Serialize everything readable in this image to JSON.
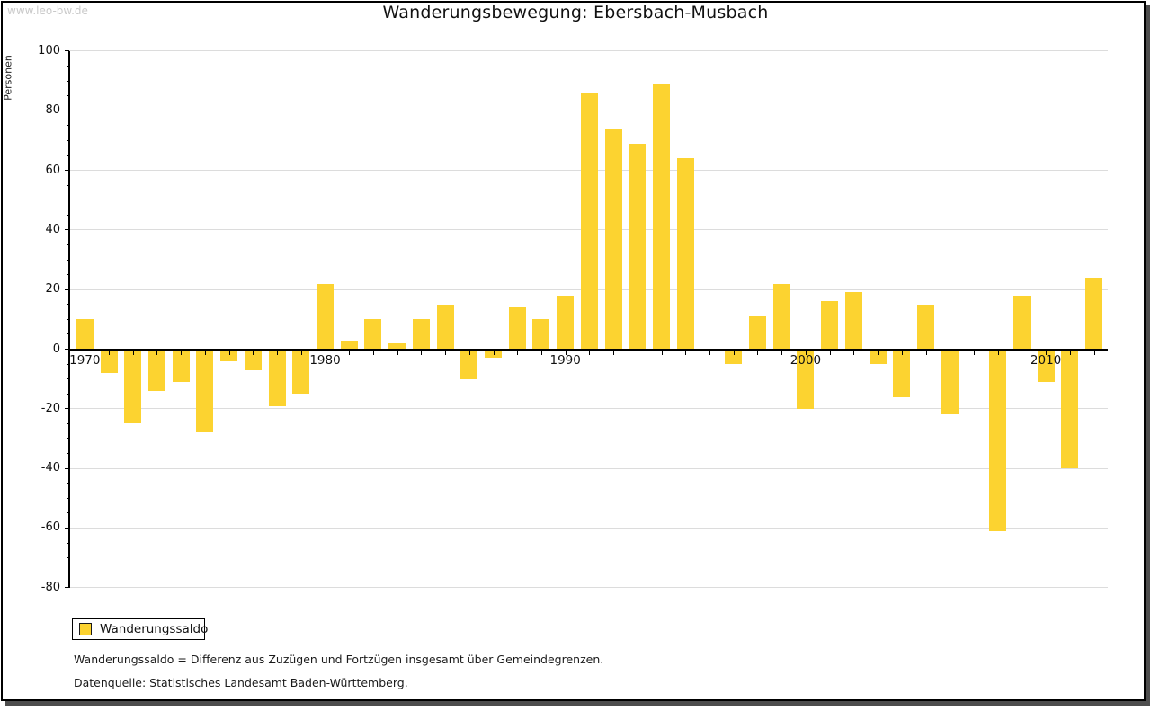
{
  "watermark": "www.leo-bw.de",
  "title": "Wanderungsbewegung: Ebersbach-Musbach",
  "legend": {
    "label": "Wanderungssaldo"
  },
  "footnotes": {
    "definition": "Wanderungssaldo = Differenz aus Zuzügen und Fortzügen insgesamt über Gemeindegrenzen.",
    "source": "Datenquelle: Statistisches Landesamt Baden-Württemberg."
  },
  "colors": {
    "bar": "#fcd330",
    "gridline": "#dcdcdc",
    "axis": "#000000",
    "frame_shadow": "#4d4d4d",
    "watermark": "#c9c9c9"
  },
  "chart_data": {
    "type": "bar",
    "title": "Wanderungsbewegung: Ebersbach-Musbach",
    "xlabel": "",
    "ylabel": "Personen",
    "series_name": "Wanderungssaldo",
    "x": [
      1970,
      1971,
      1972,
      1973,
      1974,
      1975,
      1976,
      1977,
      1978,
      1979,
      1980,
      1981,
      1982,
      1983,
      1984,
      1985,
      1986,
      1987,
      1988,
      1989,
      1990,
      1991,
      1992,
      1993,
      1994,
      1995,
      1996,
      1997,
      1998,
      1999,
      2000,
      2001,
      2002,
      2003,
      2004,
      2005,
      2006,
      2007,
      2008,
      2009,
      2010,
      2011,
      2012
    ],
    "values": [
      10,
      -8,
      -25,
      -14,
      -11,
      -28,
      -4,
      -7,
      -19,
      -15,
      22,
      3,
      10,
      2,
      10,
      15,
      -10,
      -3,
      14,
      10,
      18,
      86,
      74,
      69,
      89,
      64,
      0,
      -5,
      11,
      22,
      -20,
      16,
      19,
      -5,
      -16,
      15,
      -22,
      0,
      -61,
      18,
      -11,
      -40,
      24
    ],
    "ylim": [
      -80,
      100
    ],
    "ytick_step": 20,
    "ytick_minor_step": 5,
    "ytick_labels": [
      100,
      80,
      60,
      40,
      20,
      0,
      -20,
      -40,
      -60,
      -80
    ],
    "xtick_labels": [
      1970,
      1980,
      1990,
      2000,
      2010
    ],
    "grid": "horizontal",
    "legend_position": "bottom-left"
  }
}
